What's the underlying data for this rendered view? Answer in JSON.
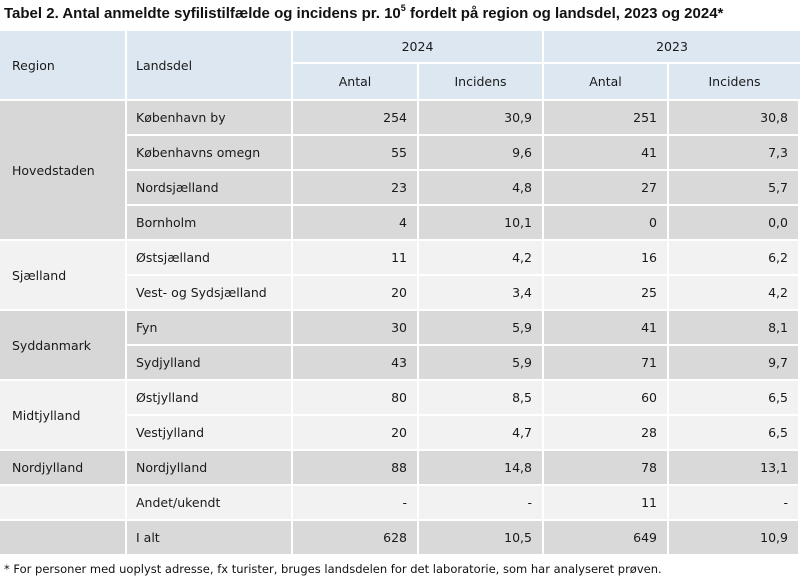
{
  "title": {
    "text_before": "Tabel 2. Antal anmeldte syfilistilfælde og incidens pr. 10",
    "sup": "5",
    "text_after": " fordelt på region og landsdel, 2023 og 2024*"
  },
  "header": {
    "region": "Region",
    "landsdel": "Landsdel",
    "year_2024": "2024",
    "year_2023": "2023",
    "antal": "Antal",
    "incidens": "Incidens"
  },
  "regions": [
    {
      "name": "Hovedstaden"
    },
    {
      "name": "Sjælland"
    },
    {
      "name": "Syddanmark"
    },
    {
      "name": "Midtjylland"
    },
    {
      "name": "Nordjylland"
    }
  ],
  "rows": [
    {
      "landsdel": "København by",
      "a2024": "254",
      "i2024": "30,9",
      "a2023": "251",
      "i2023": "30,8"
    },
    {
      "landsdel": "Københavns omegn",
      "a2024": "55",
      "i2024": "9,6",
      "a2023": "41",
      "i2023": "7,3"
    },
    {
      "landsdel": "Nordsjælland",
      "a2024": "23",
      "i2024": "4,8",
      "a2023": "27",
      "i2023": "5,7"
    },
    {
      "landsdel": "Bornholm",
      "a2024": "4",
      "i2024": "10,1",
      "a2023": "0",
      "i2023": "0,0"
    },
    {
      "landsdel": "Østsjælland",
      "a2024": "11",
      "i2024": "4,2",
      "a2023": "16",
      "i2023": "6,2"
    },
    {
      "landsdel": "Vest- og Sydsjælland",
      "a2024": "20",
      "i2024": "3,4",
      "a2023": "25",
      "i2023": "4,2"
    },
    {
      "landsdel": "Fyn",
      "a2024": "30",
      "i2024": "5,9",
      "a2023": "41",
      "i2023": "8,1"
    },
    {
      "landsdel": "Sydjylland",
      "a2024": "43",
      "i2024": "5,9",
      "a2023": "71",
      "i2023": "9,7"
    },
    {
      "landsdel": "Østjylland",
      "a2024": "80",
      "i2024": "8,5",
      "a2023": "60",
      "i2023": "6,5"
    },
    {
      "landsdel": "Vestjylland",
      "a2024": "20",
      "i2024": "4,7",
      "a2023": "28",
      "i2023": "6,5"
    },
    {
      "landsdel": "Nordjylland",
      "a2024": "88",
      "i2024": "14,8",
      "a2023": "78",
      "i2023": "13,1"
    },
    {
      "landsdel": "Andet/ukendt",
      "a2024": "-",
      "i2024": "-",
      "a2023": "11",
      "i2023": "-"
    },
    {
      "landsdel": "I alt",
      "a2024": "628",
      "i2024": "10,5",
      "a2023": "649",
      "i2023": "10,9"
    }
  ],
  "footnote": "* For personer med uoplyst adresse, fx turister, bruges landsdelen for det laboratorie, som har analyseret prøven.",
  "colors": {
    "header_bg": "#dde7f1",
    "region_bg_dark": "#d7d7d7",
    "row_bg_light": "#f2f2f2",
    "row_bg_dark": "#d9d9d9"
  }
}
